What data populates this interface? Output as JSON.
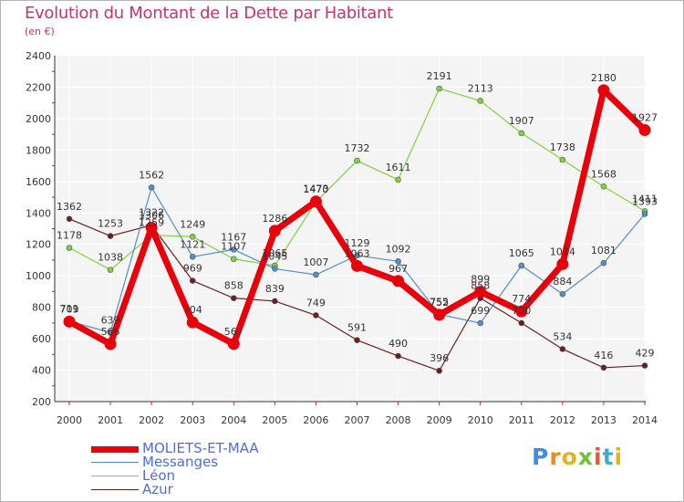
{
  "chart_data": {
    "type": "line",
    "title": "Evolution du Montant de la Dette par Habitant",
    "subtitle": "(en €)",
    "x": [
      "2000",
      "2001",
      "2002",
      "2003",
      "2004",
      "2005",
      "2006",
      "2007",
      "2008",
      "2009",
      "2010",
      "2011",
      "2012",
      "2013",
      "2014"
    ],
    "ylim": [
      200,
      2400
    ],
    "yticks": [
      200,
      400,
      600,
      800,
      1000,
      1200,
      1400,
      1600,
      1800,
      2000,
      2200,
      2400
    ],
    "grid": true,
    "legend_position": "bottom-left",
    "series": [
      {
        "name": "MOLIETS-ET-MAA",
        "color": "#e8000b",
        "values": [
          709,
          566,
          1306,
          704,
          567,
          1286,
          1473,
          1063,
          967,
          752,
          899,
          774,
          1074,
          2180,
          1927
        ]
      },
      {
        "name": "Messanges",
        "color": "#4f90c8",
        "values": [
          711,
          639,
          1562,
          1121,
          1167,
          1045,
          1007,
          1129,
          1092,
          755,
          699,
          1065,
          884,
          1081,
          1393
        ]
      },
      {
        "name": "Léon",
        "color": "#7ed33c",
        "values": [
          1178,
          1038,
          1259,
          1249,
          1107,
          1065,
          1470,
          1732,
          1611,
          2191,
          2113,
          1907,
          1738,
          1568,
          1411
        ]
      },
      {
        "name": "Azur",
        "color": "#6b1e1e",
        "values": [
          1362,
          1253,
          1322,
          969,
          858,
          839,
          749,
          591,
          490,
          396,
          858,
          700,
          534,
          416,
          429
        ]
      }
    ]
  },
  "logo": {
    "letters": [
      "P",
      "r",
      "o",
      "x",
      "i",
      "t",
      "i"
    ],
    "colors": [
      "#3a8ee6",
      "#e98b1e",
      "#e0b41e",
      "#6fc23a",
      "#e85a2a",
      "#3ab0c8",
      "#e0b41e"
    ]
  }
}
